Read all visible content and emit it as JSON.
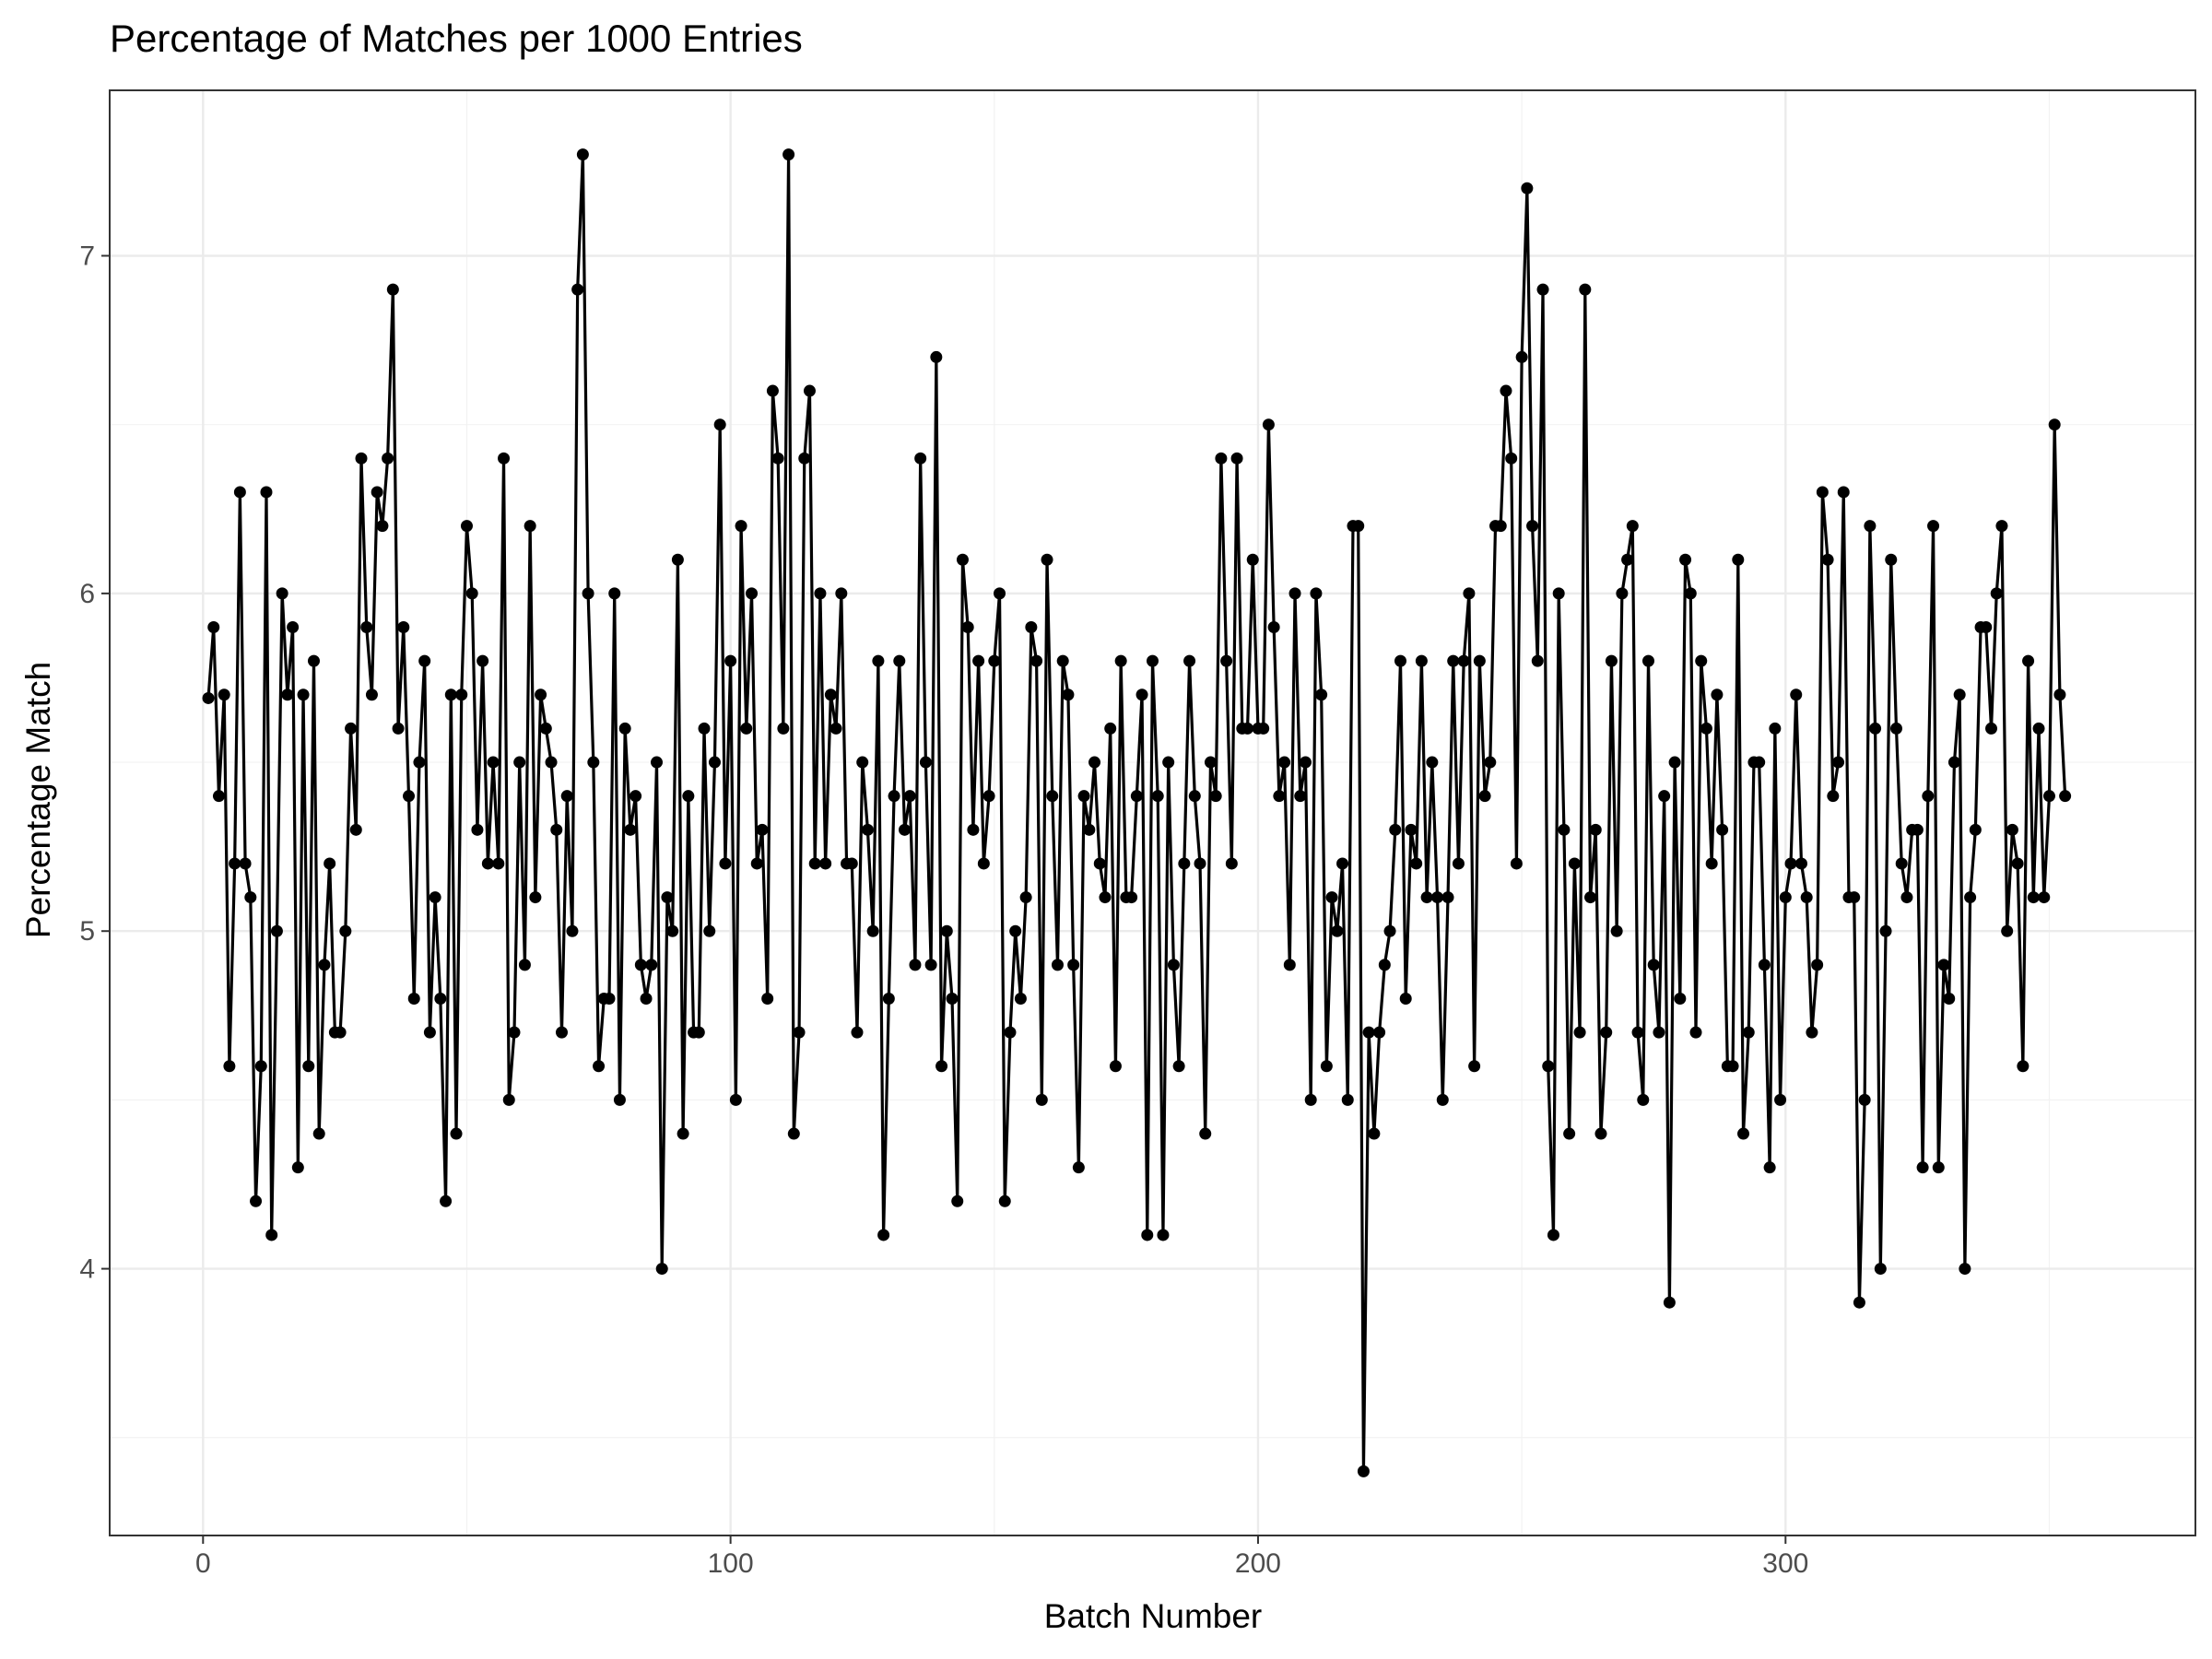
{
  "chart_data": {
    "type": "line",
    "title": "Percentage of Matches per 1000 Entries",
    "xlabel": "Batch Number",
    "ylabel": "Percentage Match",
    "xlim": [
      -17.7,
      377.7
    ],
    "ylim": [
      3.21,
      7.49
    ],
    "x_ticks": [
      0,
      100,
      200,
      300
    ],
    "y_ticks": [
      4,
      5,
      6,
      7
    ],
    "x_tick_labels": [
      "0",
      "100",
      "200",
      "300"
    ],
    "y_tick_labels": [
      "4",
      "5",
      "6",
      "7"
    ],
    "grid": true,
    "markers": true,
    "color": "#000000",
    "x_start": 1,
    "values": [
      5.69,
      5.9,
      5.4,
      5.7,
      4.6,
      5.2,
      6.3,
      5.2,
      5.1,
      4.2,
      4.6,
      6.3,
      4.1,
      5.0,
      6.0,
      5.7,
      5.9,
      4.3,
      5.7,
      4.6,
      5.8,
      4.4,
      4.9,
      5.2,
      4.7,
      4.7,
      5.0,
      5.6,
      5.3,
      6.4,
      5.9,
      5.7,
      6.3,
      6.2,
      6.4,
      6.9,
      5.6,
      5.9,
      5.4,
      4.8,
      5.5,
      5.8,
      4.7,
      5.1,
      4.8,
      4.2,
      5.7,
      4.4,
      5.7,
      6.2,
      6.0,
      5.3,
      5.8,
      5.2,
      5.5,
      5.2,
      6.4,
      4.5,
      4.7,
      5.5,
      4.9,
      6.2,
      5.1,
      5.7,
      5.6,
      5.5,
      5.3,
      4.7,
      5.4,
      5.0,
      6.9,
      7.3,
      6.0,
      5.5,
      4.6,
      4.8,
      4.8,
      6.0,
      4.5,
      5.6,
      5.3,
      5.4,
      4.9,
      4.8,
      4.9,
      5.5,
      4.0,
      5.1,
      5.0,
      6.1,
      4.4,
      5.4,
      4.7,
      4.7,
      5.6,
      5.0,
      5.5,
      6.5,
      5.2,
      5.8,
      4.5,
      6.2,
      5.6,
      6.0,
      5.2,
      5.3,
      4.8,
      6.6,
      6.4,
      5.6,
      7.3,
      4.4,
      4.7,
      6.4,
      6.6,
      5.2,
      6.0,
      5.2,
      5.7,
      5.6,
      6.0,
      5.2,
      5.2,
      4.7,
      5.5,
      5.3,
      5.0,
      5.8,
      4.1,
      4.8,
      5.4,
      5.8,
      5.3,
      5.4,
      4.9,
      6.4,
      5.5,
      4.9,
      6.7,
      4.6,
      5.0,
      4.8,
      4.2,
      6.1,
      5.9,
      5.3,
      5.8,
      5.2,
      5.4,
      5.8,
      6.0,
      4.2,
      4.7,
      5.0,
      4.8,
      5.1,
      5.9,
      5.8,
      4.5,
      6.1,
      5.4,
      4.9,
      5.8,
      5.7,
      4.9,
      4.3,
      5.4,
      5.3,
      5.5,
      5.2,
      5.1,
      5.6,
      4.6,
      5.8,
      5.1,
      5.1,
      5.4,
      5.7,
      4.1,
      5.8,
      5.4,
      4.1,
      5.5,
      4.9,
      4.6,
      5.2,
      5.8,
      5.4,
      5.2,
      4.4,
      5.5,
      5.4,
      6.4,
      5.8,
      5.2,
      6.4,
      5.6,
      5.6,
      6.1,
      5.6,
      5.6,
      6.5,
      5.9,
      5.4,
      5.5,
      4.9,
      6.0,
      5.4,
      5.5,
      4.5,
      6.0,
      5.7,
      4.6,
      5.1,
      5.0,
      5.2,
      4.5,
      6.2,
      6.2,
      3.4,
      4.7,
      4.4,
      4.7,
      4.9,
      5.0,
      5.3,
      5.8,
      4.8,
      5.3,
      5.2,
      5.8,
      5.1,
      5.5,
      5.1,
      4.5,
      5.1,
      5.8,
      5.2,
      5.8,
      6.0,
      4.6,
      5.8,
      5.4,
      5.5,
      6.2,
      6.2,
      6.6,
      6.4,
      5.2,
      6.7,
      7.2,
      6.2,
      5.8,
      6.9,
      4.6,
      4.1,
      6.0,
      5.3,
      4.4,
      5.2,
      4.7,
      6.9,
      5.1,
      5.3,
      4.4,
      4.7,
      5.8,
      5.0,
      6.0,
      6.1,
      6.2,
      4.7,
      4.5,
      5.8,
      4.9,
      4.7,
      5.4,
      3.9,
      5.5,
      4.8,
      6.1,
      6.0,
      4.7,
      5.8,
      5.6,
      5.2,
      5.7,
      5.3,
      4.6,
      4.6,
      6.1,
      4.4,
      4.7,
      5.5,
      5.5,
      4.9,
      4.3,
      5.6,
      4.5,
      5.1,
      5.2,
      5.7,
      5.2,
      5.1,
      4.7,
      4.9,
      6.3,
      6.1,
      5.4,
      5.5,
      6.3,
      5.1,
      5.1,
      3.9,
      4.5,
      6.2,
      5.6,
      4.0,
      5.0,
      6.1,
      5.6,
      5.2,
      5.1,
      5.3,
      5.3,
      4.3,
      5.4,
      6.2,
      4.3,
      4.9,
      4.8,
      5.5,
      5.7,
      4.0,
      5.1,
      5.3,
      5.9,
      5.9,
      5.6,
      6.0,
      6.2,
      5.0,
      5.3,
      5.2,
      4.6,
      5.8,
      5.1,
      5.6,
      5.1,
      5.4,
      6.5,
      5.7,
      5.4
    ]
  }
}
